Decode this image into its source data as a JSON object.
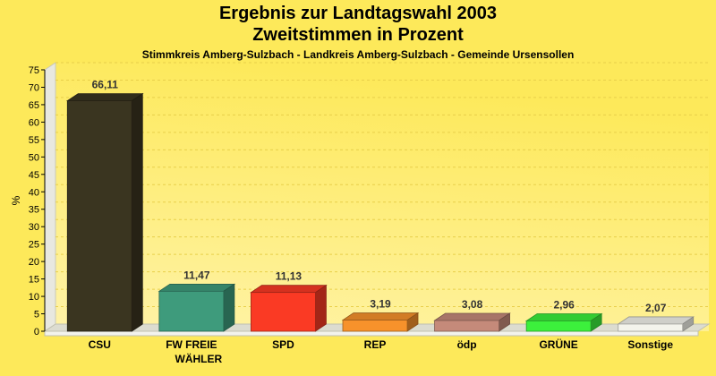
{
  "chart_data": {
    "type": "bar",
    "title": "Ergebnis zur Landtagswahl 2003",
    "title_line2": "Zweitstimmen in Prozent",
    "subtitle": "Stimmkreis Amberg-Sulzbach - Landkreis Amberg-Sulzbach - Gemeinde Ursensollen",
    "ylabel": "%",
    "xlabel": "",
    "ylim": [
      0,
      75
    ],
    "ytick_step": 5,
    "grid": true,
    "categories": [
      {
        "label": "CSU",
        "label_line2": ""
      },
      {
        "label": "FW FREIE",
        "label_line2": "WÄHLER"
      },
      {
        "label": "SPD",
        "label_line2": ""
      },
      {
        "label": "REP",
        "label_line2": ""
      },
      {
        "label": "ödp",
        "label_line2": ""
      },
      {
        "label": "GRÜNE",
        "label_line2": ""
      },
      {
        "label": "Sonstige",
        "label_line2": ""
      }
    ],
    "values": [
      66.11,
      11.47,
      11.13,
      3.19,
      3.08,
      2.96,
      2.07
    ],
    "value_labels": [
      "66,11",
      "11,47",
      "11,13",
      "3,19",
      "3,08",
      "2,96",
      "2,07"
    ],
    "colors": [
      "#3a3520",
      "#3e9b7c",
      "#fa3a24",
      "#f7922b",
      "#c58a7a",
      "#3cf03c",
      "#f4f4ec"
    ],
    "background": "#fde95a"
  }
}
